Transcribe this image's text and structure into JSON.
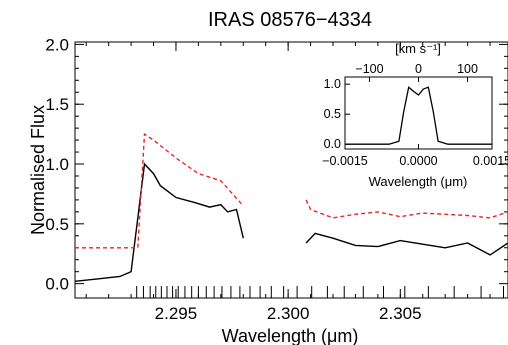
{
  "chart_data": [
    {
      "type": "line",
      "title": "IRAS 08576−4334",
      "xlabel": "Wavelength (μm)",
      "ylabel": "Normalised Flux",
      "xlim": [
        2.2905,
        2.3098
      ],
      "ylim": [
        -0.12,
        2.02
      ],
      "x_ticks": [
        2.295,
        2.3,
        2.305
      ],
      "x_tick_labels": [
        "2.295",
        "2.300",
        "2.305"
      ],
      "y_ticks": [
        0.0,
        0.5,
        1.0,
        1.5,
        2.0
      ],
      "y_tick_labels": [
        "0.0",
        "0.5",
        "1.0",
        "1.5",
        "2.0"
      ],
      "grid": false,
      "series": [
        {
          "style": "solid",
          "color": "#000000",
          "segments": [
            {
              "x": [
                2.2905,
                2.2915,
                2.2925,
                2.293,
                2.2933,
                2.2936,
                2.294,
                2.2943,
                2.295,
                2.2958,
                2.2965,
                2.297,
                2.2973,
                2.2977,
                2.298
              ],
              "y": [
                0.02,
                0.04,
                0.06,
                0.1,
                0.55,
                1.0,
                0.92,
                0.82,
                0.72,
                0.68,
                0.64,
                0.66,
                0.6,
                0.62,
                0.38
              ]
            },
            {
              "x": [
                2.3008,
                2.3012,
                2.302,
                2.303,
                2.304,
                2.305,
                2.306,
                2.307,
                2.308,
                2.309,
                2.3098
              ],
              "y": [
                0.34,
                0.42,
                0.38,
                0.32,
                0.31,
                0.36,
                0.33,
                0.3,
                0.34,
                0.24,
                0.34
              ]
            }
          ]
        },
        {
          "style": "dashed",
          "color": "#e8262a",
          "segments": [
            {
              "x": [
                2.2905,
                2.2933,
                2.2936,
                2.294,
                2.295,
                2.296,
                2.297,
                2.298
              ],
              "y": [
                0.3,
                0.3,
                1.25,
                1.2,
                1.05,
                0.92,
                0.86,
                0.65
              ]
            },
            {
              "x": [
                2.3008,
                2.301,
                2.302,
                2.303,
                2.304,
                2.305,
                2.306,
                2.307,
                2.308,
                2.309,
                2.3098
              ],
              "y": [
                0.7,
                0.62,
                0.55,
                0.58,
                0.6,
                0.56,
                0.59,
                0.58,
                0.57,
                0.55,
                0.6
              ]
            }
          ]
        }
      ],
      "line_list_ticks": [
        2.29325,
        2.29355,
        2.29385,
        2.2941,
        2.29435,
        2.2946,
        2.29485,
        2.2951,
        2.2954,
        2.2957,
        2.296,
        2.29635,
        2.2967,
        2.29705,
        2.29745,
        2.29785,
        2.2983,
        2.29875,
        2.29925,
        2.2998,
        2.3004,
        2.30105,
        2.30175,
        2.3025,
        2.30335,
        2.30425,
        2.3052,
        2.30625,
        2.3074,
        2.3086,
        2.3096
      ]
    },
    {
      "type": "line",
      "xlabel": "Wavelength (μm)",
      "top_axis_label": "[km s⁻¹]",
      "xlim": [
        -0.0015,
        0.0015
      ],
      "ylim": [
        -0.08,
        1.12
      ],
      "x_tick_labels": [
        "−0.0015",
        "0.0000",
        "0.0015"
      ],
      "top_tick_labels": [
        "−100",
        "0",
        "100"
      ],
      "y_tick_labels": [
        "0.0",
        "0.5",
        "1.0"
      ],
      "x": [
        -0.0015,
        -0.0006,
        -0.0004,
        -0.0003,
        -0.0002,
        -0.0001,
        0.0,
        0.0001,
        0.0002,
        0.0003,
        0.0004,
        0.0006,
        0.0015
      ],
      "y": [
        0.0,
        0.0,
        0.05,
        0.55,
        0.95,
        0.88,
        0.82,
        0.92,
        0.95,
        0.55,
        0.05,
        0.0,
        0.0
      ]
    }
  ]
}
